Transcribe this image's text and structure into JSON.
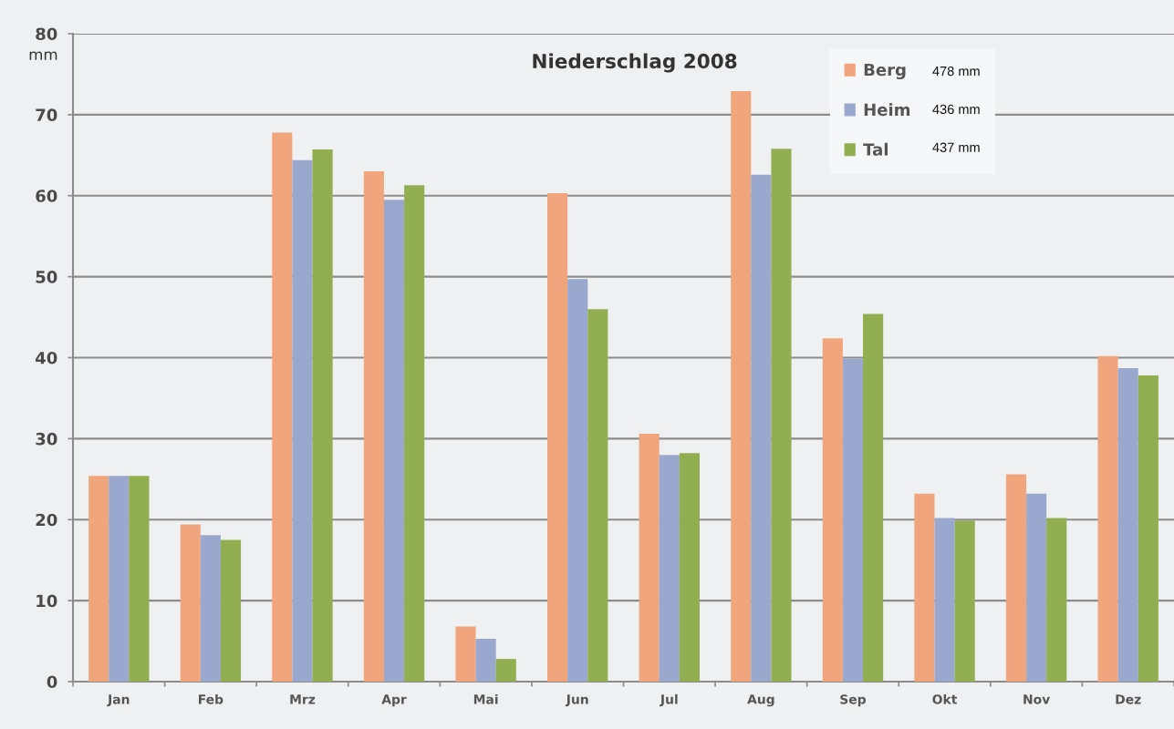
{
  "chart_data": {
    "type": "bar",
    "title": "Niederschlag 2008",
    "ylabel": "mm",
    "categories": [
      "Jan",
      "Feb",
      "Mrz",
      "Apr",
      "Mai",
      "Jun",
      "Jul",
      "Aug",
      "Sep",
      "Okt",
      "Nov",
      "Dez"
    ],
    "series": [
      {
        "name": "Berg",
        "color": "#f0a57d",
        "values": [
          25.4,
          19.4,
          67.8,
          63.0,
          6.8,
          60.3,
          30.6,
          72.9,
          42.4,
          23.2,
          25.6,
          40.2
        ]
      },
      {
        "name": "Heim",
        "color": "#9ba8cd",
        "values": [
          25.4,
          18.1,
          64.4,
          59.5,
          5.3,
          49.7,
          28.0,
          62.6,
          39.9,
          20.2,
          23.2,
          38.7
        ]
      },
      {
        "name": "Tal",
        "color": "#91af50",
        "values": [
          25.4,
          17.5,
          65.7,
          61.3,
          2.8,
          46.0,
          28.2,
          65.8,
          45.4,
          19.9,
          20.2,
          37.8
        ]
      }
    ],
    "annotations": [
      "478 mm",
      "436 mm",
      "437 mm"
    ],
    "ylim": [
      0,
      80
    ],
    "yticks": [
      0,
      10,
      20,
      30,
      40,
      50,
      60,
      70,
      80
    ],
    "grid": "y",
    "legend": "top right"
  }
}
